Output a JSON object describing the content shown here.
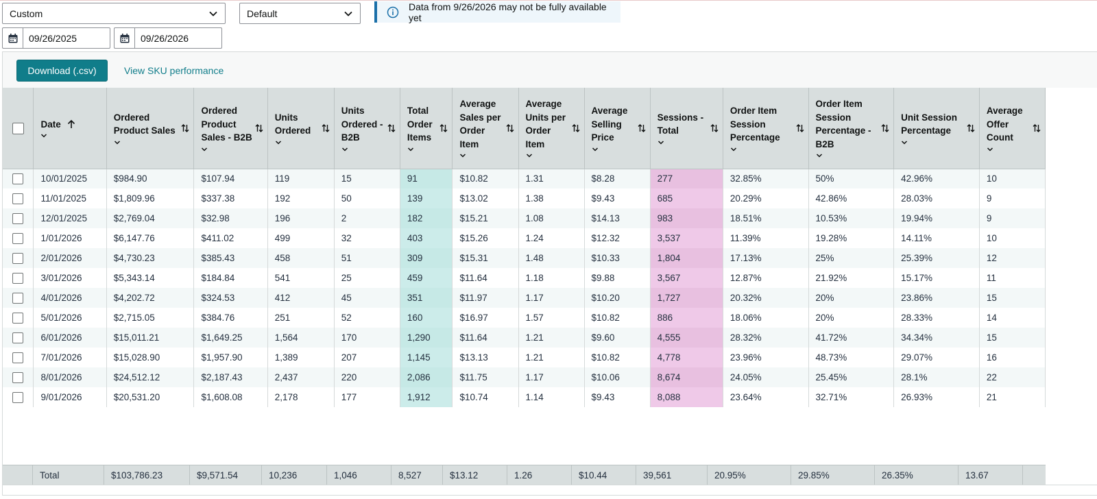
{
  "filters": {
    "date_range_select": "Custom",
    "compare_select": "Default",
    "info_banner": "Data from 9/26/2026 may not be fully available yet",
    "start_date": "09/26/2025",
    "end_date": "09/26/2026"
  },
  "toolbar": {
    "download_label": "Download (.csv)",
    "sku_link_label": "View SKU performance"
  },
  "columns": [
    "Date",
    "Ordered Product Sales",
    "Ordered Product Sales - B2B",
    "Units Ordered",
    "Units Ordered - B2B",
    "Total Order Items",
    "Average Sales per Order Item",
    "Average Units per Order Item",
    "Average Selling Price",
    "Sessions - Total",
    "Order Item Session Percentage",
    "Order Item Session Percentage - B2B",
    "Unit Session Percentage",
    "Average Offer Count"
  ],
  "rows": [
    [
      "10/01/2025",
      "$984.90",
      "$107.94",
      "119",
      "15",
      "91",
      "$10.82",
      "1.31",
      "$8.28",
      "277",
      "32.85%",
      "50%",
      "42.96%",
      "10"
    ],
    [
      "11/01/2025",
      "$1,809.96",
      "$337.38",
      "192",
      "50",
      "139",
      "$13.02",
      "1.38",
      "$9.43",
      "685",
      "20.29%",
      "42.86%",
      "28.03%",
      "9"
    ],
    [
      "12/01/2025",
      "$2,769.04",
      "$32.98",
      "196",
      "2",
      "182",
      "$15.21",
      "1.08",
      "$14.13",
      "983",
      "18.51%",
      "10.53%",
      "19.94%",
      "9"
    ],
    [
      "1/01/2026",
      "$6,147.76",
      "$411.02",
      "499",
      "32",
      "403",
      "$15.26",
      "1.24",
      "$12.32",
      "3,537",
      "11.39%",
      "19.28%",
      "14.11%",
      "10"
    ],
    [
      "2/01/2026",
      "$4,730.23",
      "$385.43",
      "458",
      "51",
      "309",
      "$15.31",
      "1.48",
      "$10.33",
      "1,804",
      "17.13%",
      "25%",
      "25.39%",
      "12"
    ],
    [
      "3/01/2026",
      "$5,343.14",
      "$184.84",
      "541",
      "25",
      "459",
      "$11.64",
      "1.18",
      "$9.88",
      "3,567",
      "12.87%",
      "21.92%",
      "15.17%",
      "11"
    ],
    [
      "4/01/2026",
      "$4,202.72",
      "$324.53",
      "412",
      "45",
      "351",
      "$11.97",
      "1.17",
      "$10.20",
      "1,727",
      "20.32%",
      "20%",
      "23.86%",
      "15"
    ],
    [
      "5/01/2026",
      "$2,715.05",
      "$384.76",
      "251",
      "52",
      "160",
      "$16.97",
      "1.57",
      "$10.82",
      "886",
      "18.06%",
      "20%",
      "28.33%",
      "14"
    ],
    [
      "6/01/2026",
      "$15,011.21",
      "$1,649.25",
      "1,564",
      "170",
      "1,290",
      "$11.64",
      "1.21",
      "$9.60",
      "4,555",
      "28.32%",
      "41.72%",
      "34.34%",
      "15"
    ],
    [
      "7/01/2026",
      "$15,028.90",
      "$1,957.90",
      "1,389",
      "207",
      "1,145",
      "$13.13",
      "1.21",
      "$10.82",
      "4,778",
      "23.96%",
      "48.73%",
      "29.07%",
      "16"
    ],
    [
      "8/01/2026",
      "$24,512.12",
      "$2,187.43",
      "2,437",
      "220",
      "2,086",
      "$11.75",
      "1.17",
      "$10.06",
      "8,674",
      "24.05%",
      "25.45%",
      "28.1%",
      "22"
    ],
    [
      "9/01/2026",
      "$20,531.20",
      "$1,608.08",
      "2,178",
      "177",
      "1,912",
      "$10.74",
      "1.14",
      "$9.43",
      "8,088",
      "23.64%",
      "32.71%",
      "26.93%",
      "21"
    ]
  ],
  "totals": [
    "Total",
    "$103,786.23",
    "$9,571.54",
    "10,236",
    "1,046",
    "8,527",
    "$13.12",
    "1.26",
    "$10.44",
    "39,561",
    "20.95%",
    "29.85%",
    "26.35%",
    "13.67"
  ],
  "colors": {
    "accent": "#107d8a",
    "header_bg": "#d8dede",
    "highlight_total_order_items": "#c6e9e6",
    "highlight_sessions": "#e8c0e0",
    "info_bar": "#1a6fa8"
  },
  "icons": {
    "select_chevron": "chevron-down-icon",
    "info": "info-icon",
    "calendar": "calendar-icon",
    "sort": "sort-icon",
    "sort_ascending": "arrow-up-icon"
  }
}
